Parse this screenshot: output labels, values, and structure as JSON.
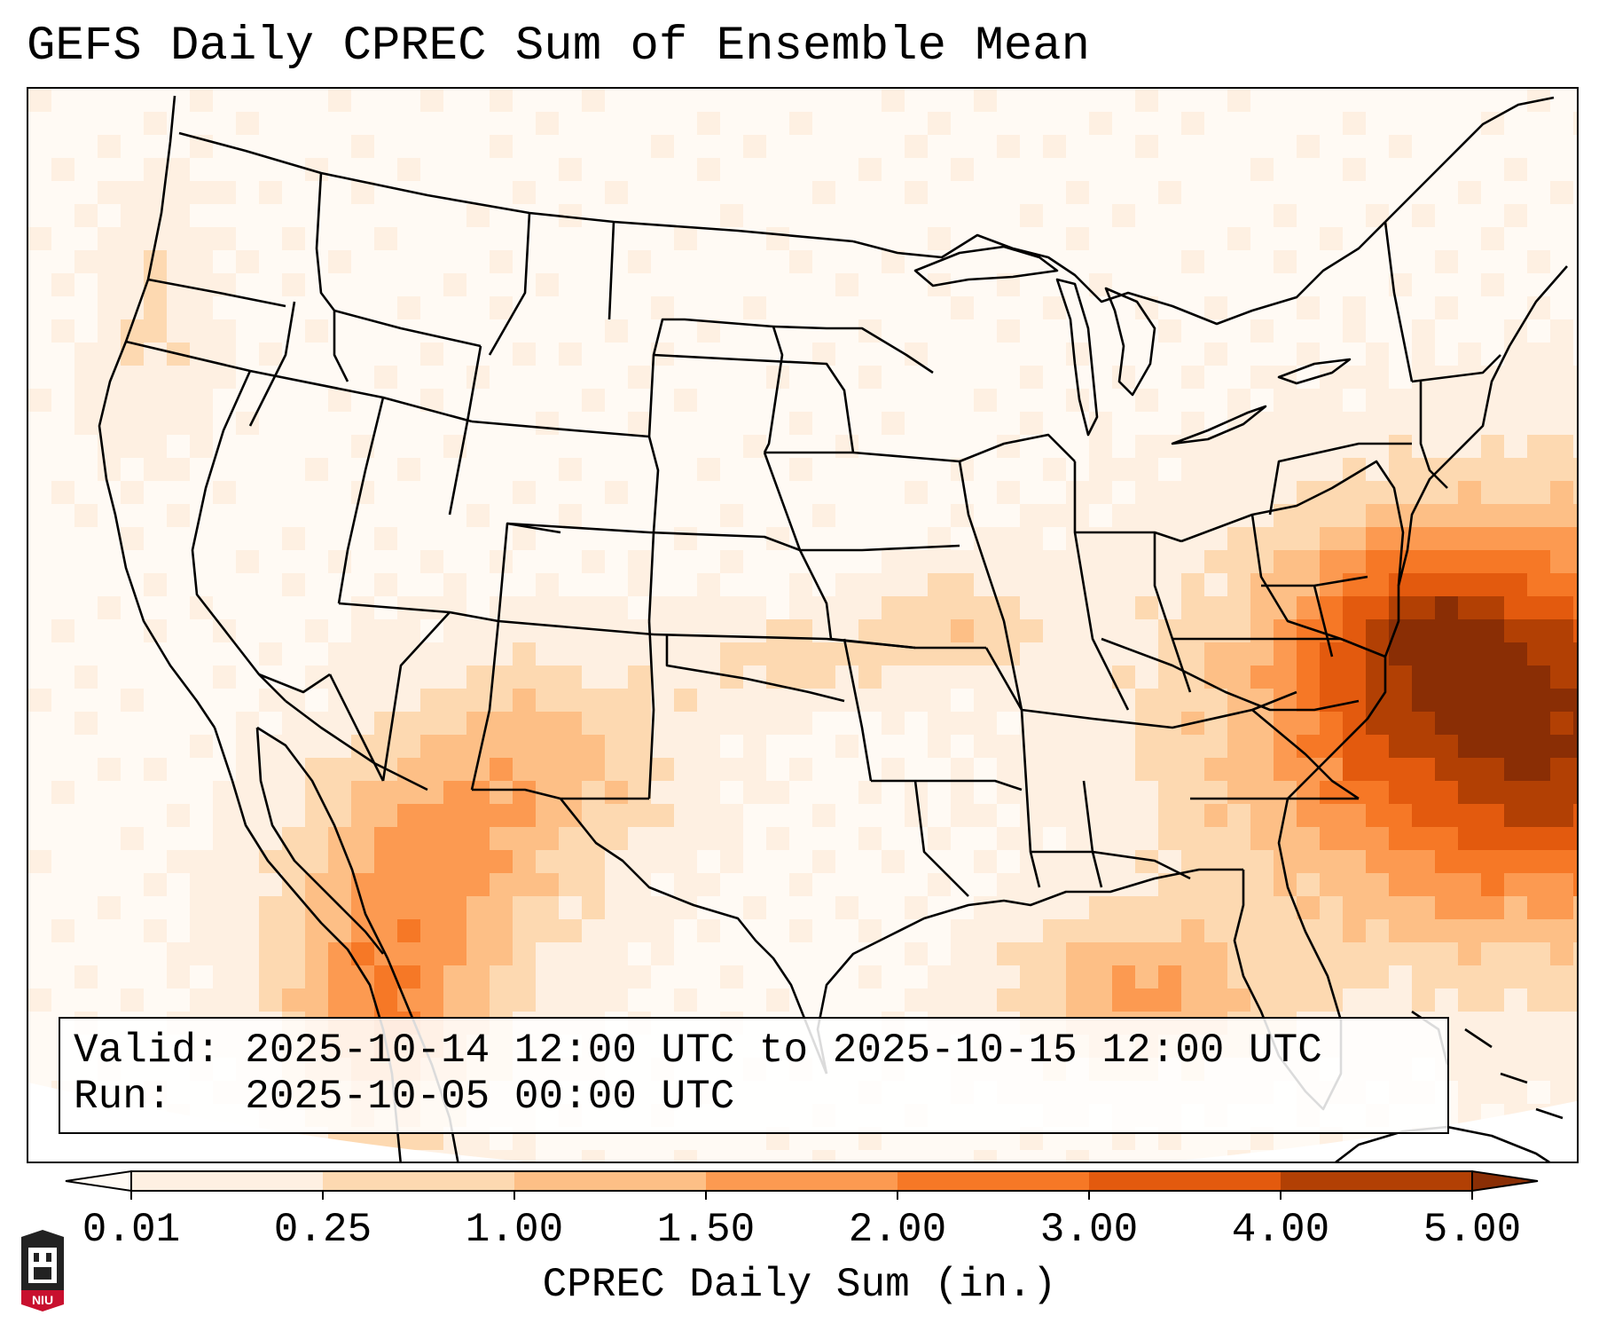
{
  "title": "GEFS Daily CPREC Sum of Ensemble Mean",
  "info_box": {
    "valid": "Valid: 2025-10-14 12:00 UTC to 2025-10-15 12:00 UTC",
    "run": "Run:   2025-10-05 00:00 UTC"
  },
  "colorbar": {
    "label": "CPREC Daily Sum (in.)",
    "ticks": [
      "0.01",
      "0.25",
      "1.00",
      "1.50",
      "2.00",
      "3.00",
      "4.00",
      "5.00"
    ],
    "colors": [
      "#fef0e2",
      "#fdd9b1",
      "#fdbf86",
      "#fc9a51",
      "#f67826",
      "#e35a0e",
      "#b24004"
    ],
    "under_color": "#fffaf4",
    "over_color": "#8a2e05"
  },
  "logo": {
    "text": "NIU",
    "color": "#c8102e"
  }
}
